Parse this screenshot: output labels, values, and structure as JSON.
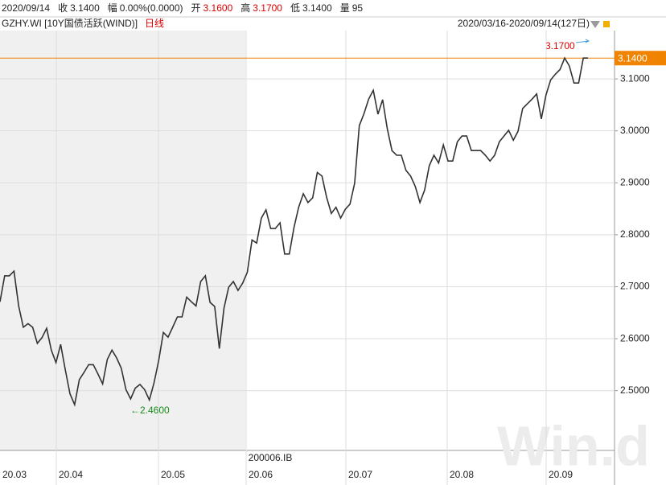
{
  "header": {
    "date": "2020/09/14",
    "fields": [
      {
        "label": "收",
        "value": "3.1400"
      },
      {
        "label": "幅",
        "value": "0.00%(0.0000)"
      },
      {
        "label": "开",
        "value": "3.1600"
      },
      {
        "label": "高",
        "value": "3.1700"
      },
      {
        "label": "低",
        "value": "3.1400"
      },
      {
        "label": "量",
        "value": "95"
      }
    ],
    "symbol": "GZHY.WI [10Y国债活跃(WIND)]",
    "period": "日线",
    "range": "2020/03/16-2020/09/14(127日)"
  },
  "chart_data": {
    "type": "line",
    "color": "#333333",
    "values": [
      2.671,
      2.721,
      2.721,
      2.73,
      2.663,
      2.622,
      2.629,
      2.622,
      2.591,
      2.602,
      2.62,
      2.578,
      2.554,
      2.589,
      2.54,
      2.494,
      2.473,
      2.521,
      2.535,
      2.55,
      2.55,
      2.532,
      2.513,
      2.56,
      2.578,
      2.563,
      2.543,
      2.502,
      2.484,
      2.505,
      2.512,
      2.502,
      2.482,
      2.515,
      2.558,
      2.612,
      2.603,
      2.622,
      2.642,
      2.642,
      2.68,
      2.671,
      2.663,
      2.71,
      2.721,
      2.67,
      2.662,
      2.581,
      2.659,
      2.699,
      2.71,
      2.693,
      2.707,
      2.728,
      2.79,
      2.784,
      2.832,
      2.848,
      2.812,
      2.812,
      2.823,
      2.763,
      2.763,
      2.814,
      2.853,
      2.879,
      2.862,
      2.871,
      2.92,
      2.913,
      2.872,
      2.841,
      2.853,
      2.832,
      2.849,
      2.859,
      2.899,
      3.01,
      3.033,
      3.061,
      3.078,
      3.032,
      3.06,
      3.004,
      2.962,
      2.953,
      2.953,
      2.924,
      2.913,
      2.893,
      2.862,
      2.886,
      2.933,
      2.953,
      2.938,
      2.973,
      2.942,
      2.942,
      2.979,
      2.99,
      2.99,
      2.962,
      2.962,
      2.962,
      2.953,
      2.942,
      2.953,
      2.979,
      2.99,
      3.001,
      2.982,
      2.999,
      3.043,
      3.052,
      3.061,
      3.071,
      3.023,
      3.069,
      3.098,
      3.109,
      3.118,
      3.14,
      3.125,
      3.092,
      3.092,
      3.14,
      3.14
    ],
    "ylim": [
      2.385,
      3.193
    ],
    "yticks": [
      {
        "value": 3.1,
        "label": "3.1000"
      },
      {
        "value": 3.0,
        "label": "3.0000"
      },
      {
        "value": 2.9,
        "label": "2.9000"
      },
      {
        "value": 2.8,
        "label": "2.8000"
      },
      {
        "value": 2.7,
        "label": "2.7000"
      },
      {
        "value": 2.6,
        "label": "2.6000"
      },
      {
        "value": 2.5,
        "label": "2.5000"
      }
    ],
    "grid": true,
    "month_labels": [
      "20.03",
      "20.04",
      "20.05",
      "20.06",
      "20.07",
      "20.08",
      "20.09"
    ],
    "last_price": {
      "value": 3.14,
      "label": "3.1400",
      "color": "#f08300"
    },
    "high_label": "3.1700",
    "low_label": "←2.4600",
    "contract": "200006.IB",
    "watermark": "Win.d"
  }
}
